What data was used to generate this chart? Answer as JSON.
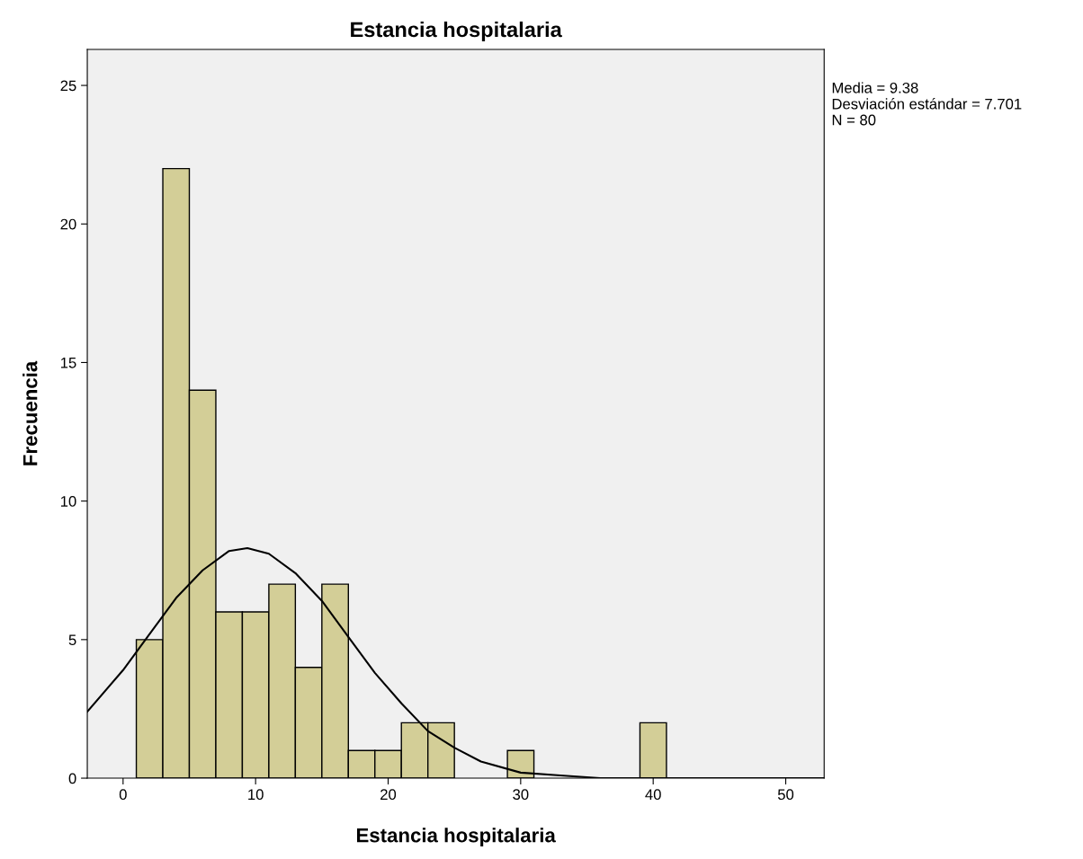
{
  "chart_data": {
    "type": "histogram",
    "title": "Estancia hospitalaria",
    "xlabel": "Estancia hospitalaria",
    "ylabel": "Frecuencia",
    "series": [
      {
        "color": "#d3ce97",
        "bins": [
          1,
          3,
          5,
          7,
          9,
          11,
          13,
          15,
          17,
          19,
          21,
          23,
          25,
          27,
          29,
          31,
          33,
          35,
          37,
          39,
          41
        ],
        "values": [
          5,
          22,
          14,
          6,
          6,
          7,
          4,
          7,
          1,
          1,
          2,
          2,
          0,
          0,
          1,
          0,
          0,
          0,
          0,
          2
        ]
      },
      {
        "type": "line",
        "color": "#000000",
        "x": [
          -2.7,
          0,
          2,
          4,
          6,
          8,
          9.38,
          11,
          13,
          15,
          17,
          19,
          21,
          23,
          25,
          27,
          30,
          33,
          36,
          40,
          52.9
        ],
        "values": [
          2.4,
          3.9,
          5.2,
          6.5,
          7.5,
          8.2,
          8.3,
          8.1,
          7.4,
          6.4,
          5.1,
          3.8,
          2.7,
          1.7,
          1.1,
          0.6,
          0.2,
          0.1,
          0,
          0,
          0
        ]
      }
    ],
    "xlim": [
      -2.7,
      52.9
    ],
    "ylim": [
      0,
      26.3
    ],
    "xticks": [
      0,
      10,
      20,
      30,
      40,
      50
    ],
    "yticks": [
      0,
      5,
      10,
      15,
      20,
      25
    ],
    "grid": false,
    "annotations": [
      "Media = 9.38",
      "Desviación estándar = 7.701",
      "N = 80"
    ]
  }
}
